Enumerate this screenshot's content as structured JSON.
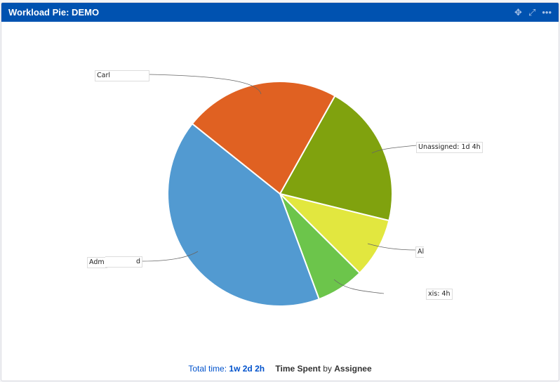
{
  "header": {
    "title": "Workload Pie: DEMO",
    "icons": [
      "move-icon",
      "expand-icon",
      "more-icon"
    ]
  },
  "footer": {
    "total_label": "Total time:",
    "total_value": "1w 2d 2h",
    "metric": "Time Spent",
    "by": "by",
    "group": "Assignee"
  },
  "chart_data": {
    "type": "pie",
    "title": "Time Spent by Assignee",
    "unit": "hours",
    "start_angle_deg": 29.3,
    "slices": [
      {
        "name": "Unassigned",
        "value": 12,
        "label": "Unassigned: 1d 4h",
        "color": "#80a20e"
      },
      {
        "name": "Al",
        "value": 5,
        "label": "Al",
        "color": "#e2e73f"
      },
      {
        "name": "xis",
        "value": 4,
        "label": "xis: 4h",
        "color": "#6cc54b"
      },
      {
        "name": "Adm",
        "value": 24,
        "label_left": "Adm",
        "label_right": "d",
        "color": "#529ad1"
      },
      {
        "name": "Carl",
        "value": 13,
        "label": "Carl",
        "color": "#e06122"
      }
    ]
  }
}
